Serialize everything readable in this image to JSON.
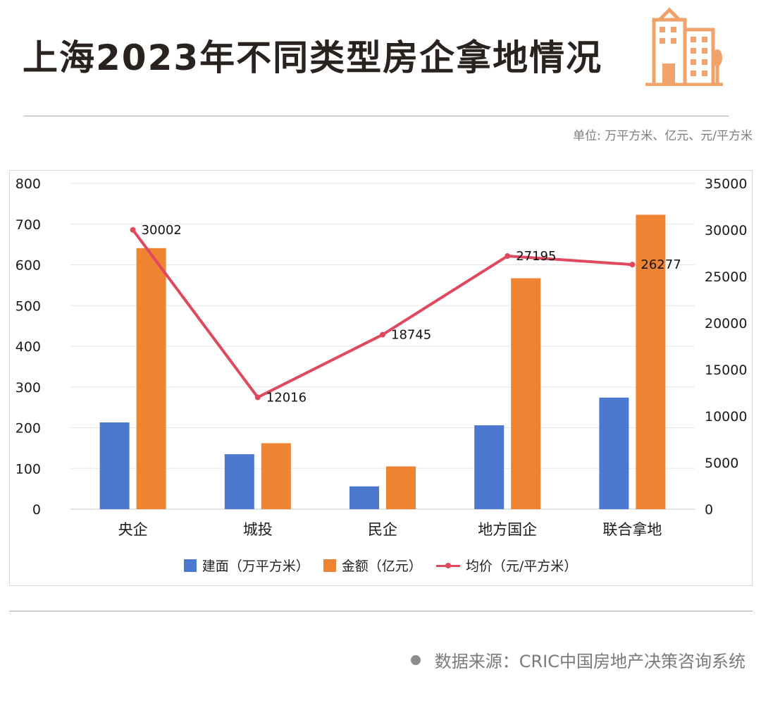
{
  "header": {
    "title": "上海2023年不同类型房企拿地情况",
    "unit_note": "单位: 万平方米、亿元、元/平方米"
  },
  "logo_icon": "city-buildings-icon",
  "footer": {
    "source": "数据来源：CRIC中国房地产决策咨询系统"
  },
  "colors": {
    "area": "#4c78d0",
    "amount": "#ee8432",
    "price": "#e0485e",
    "logo": "#f0a26a"
  },
  "chart_data": {
    "type": "bar",
    "categories": [
      "央企",
      "城投",
      "民企",
      "地方国企",
      "联合拿地"
    ],
    "series": [
      {
        "name": "建面（万平方米）",
        "type": "bar",
        "axis": "left",
        "values": [
          213,
          135,
          56,
          206,
          274
        ]
      },
      {
        "name": "金额（亿元）",
        "type": "bar",
        "axis": "left",
        "values": [
          641,
          162,
          105,
          567,
          723
        ]
      },
      {
        "name": "均价（元/平方米）",
        "type": "line",
        "axis": "right",
        "values": [
          30002,
          12016,
          18745,
          27195,
          26277
        ]
      }
    ],
    "ylim": [
      0,
      800
    ],
    "y2lim": [
      0,
      35000
    ],
    "yticks": [
      "0",
      "100",
      "200",
      "300",
      "400",
      "500",
      "600",
      "700",
      "800"
    ],
    "y2ticks": [
      "0",
      "5000",
      "10000",
      "15000",
      "20000",
      "25000",
      "30000",
      "35000"
    ],
    "data_labels": [
      "30002",
      "12016",
      "18745",
      "27195",
      "26277"
    ],
    "grid": true,
    "legend": "bottom"
  }
}
